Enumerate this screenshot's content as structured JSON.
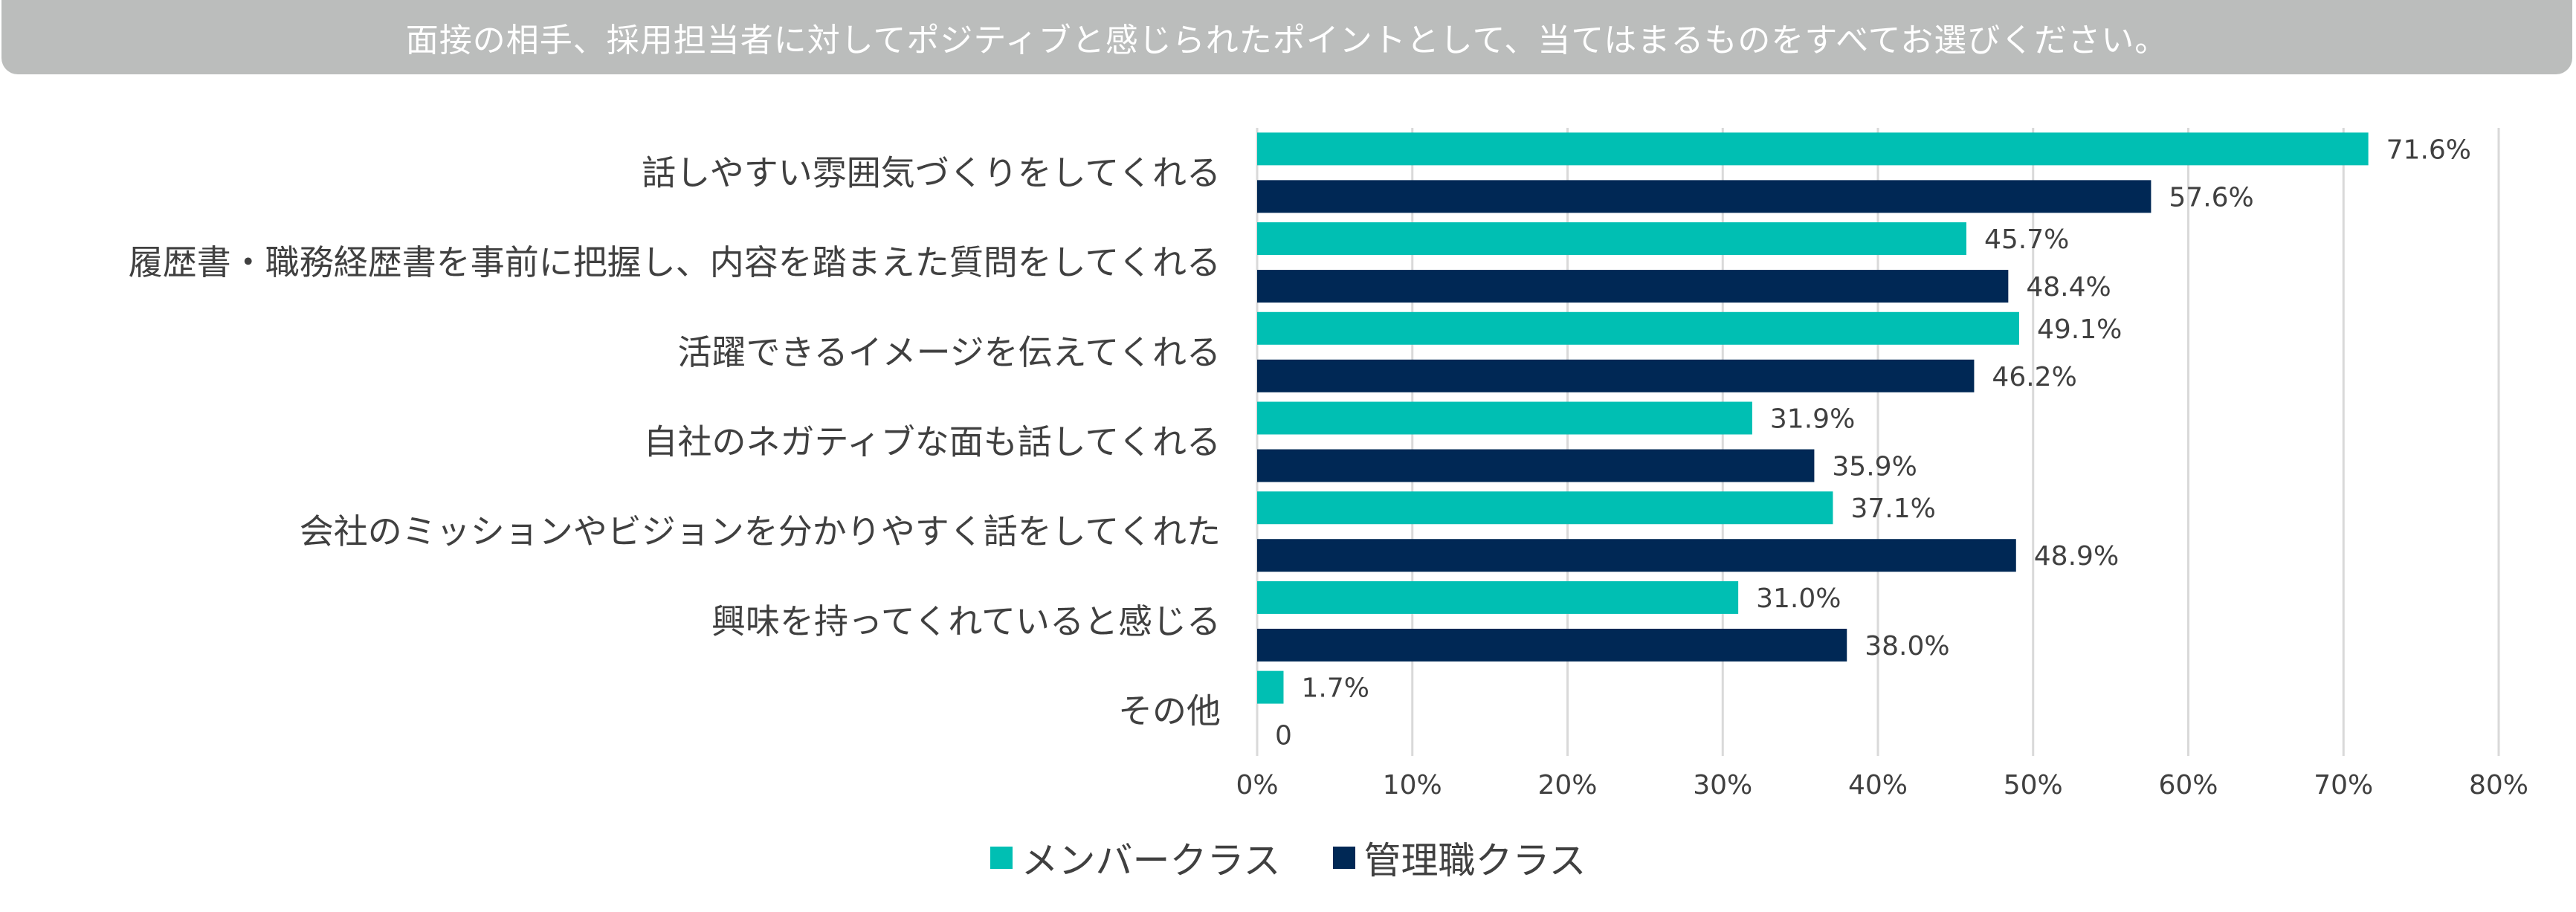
{
  "chart_data": {
    "type": "bar",
    "orientation": "horizontal",
    "title": "面接の相手、採用担当者に対してポジティブと感じられたポイントとして、当てはまるものをすべてお選びください。",
    "categories": [
      "話しやすい雰囲気づくりをしてくれる",
      "履歴書・職務経歴書を事前に把握し、内容を踏まえた質問をしてくれる",
      "活躍できるイメージを伝えてくれる",
      "自社のネガティブな面も話してくれる",
      "会社のミッションやビジョンを分かりやすく話をしてくれた",
      "興味を持ってくれていると感じる",
      "その他"
    ],
    "series": [
      {
        "name": "メンバークラス",
        "color": "#00bfb3",
        "values": [
          71.6,
          45.7,
          49.1,
          31.9,
          37.1,
          31.0,
          1.7
        ],
        "labels": [
          "71.6%",
          "45.7%",
          "49.1%",
          "31.9%",
          "37.1%",
          "31.0%",
          "1.7%"
        ]
      },
      {
        "name": "管理職クラス",
        "color": "#002855",
        "values": [
          57.6,
          48.4,
          46.2,
          35.9,
          48.9,
          38.0,
          0
        ],
        "labels": [
          "57.6%",
          "48.4%",
          "46.2%",
          "35.9%",
          "48.9%",
          "38.0%",
          "0"
        ]
      }
    ],
    "xlim": [
      0,
      80
    ],
    "xticks": [
      "0%",
      "10%",
      "20%",
      "30%",
      "40%",
      "50%",
      "60%",
      "70%",
      "80%"
    ],
    "grid": true,
    "legend": "bottom",
    "xlabel": "",
    "ylabel": ""
  }
}
